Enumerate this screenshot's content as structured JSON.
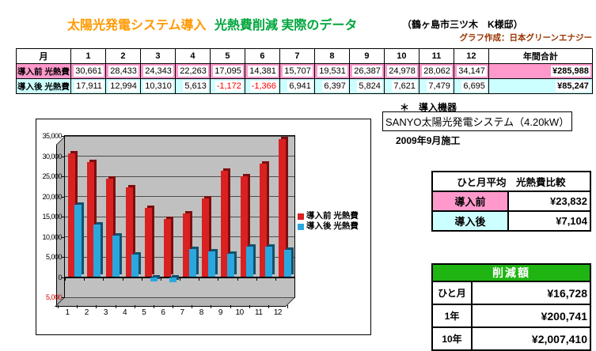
{
  "header": {
    "title_orange": "太陽光発電システム導入",
    "title_green": "光熱費削減 実際のデータ",
    "location": "（鶴ヶ島市三ツ木　K様邸）",
    "credit": "グラフ作成：日本グリーンエナジー"
  },
  "monthly_table": {
    "month_header": "月",
    "months": [
      "1",
      "2",
      "3",
      "4",
      "5",
      "6",
      "7",
      "8",
      "9",
      "10",
      "11",
      "12"
    ],
    "annual_total_header": "年間合計",
    "rows": [
      {
        "label": "導入前 光熱費",
        "row_color": "#FF99CC",
        "values": [
          "30,661",
          "28,433",
          "24,343",
          "22,263",
          "17,095",
          "14,381",
          "15,707",
          "19,531",
          "26,387",
          "24,978",
          "28,062",
          "34,147"
        ],
        "total": "¥285,988"
      },
      {
        "label": "導入後 光熱費",
        "row_color": "#CCFFFF",
        "values": [
          "17,911",
          "12,994",
          "10,310",
          "5,613",
          "-1,172",
          "-1,366",
          "6,941",
          "6,397",
          "5,824",
          "7,621",
          "7,479",
          "6,695"
        ],
        "total": "¥85,247"
      }
    ]
  },
  "chart_data": {
    "type": "bar",
    "title": "",
    "categories": [
      "1",
      "2",
      "3",
      "4",
      "5",
      "6",
      "7",
      "8",
      "9",
      "10",
      "11",
      "12"
    ],
    "series": [
      {
        "name": "導入前 光熱費",
        "color": "#D92121",
        "values": [
          30661,
          28433,
          24343,
          22263,
          17095,
          14381,
          15707,
          19531,
          26387,
          24978,
          28062,
          34147
        ]
      },
      {
        "name": "導入後 光熱費",
        "color": "#2BA7DE",
        "values": [
          17911,
          12994,
          10310,
          5613,
          -1172,
          -1366,
          6941,
          6397,
          5824,
          7621,
          7479,
          6695
        ]
      }
    ],
    "xlabel": "",
    "ylabel": "",
    "ylim": [
      -5000,
      35000
    ],
    "ytick_step": 5000,
    "grid": true,
    "legend_position": "right",
    "plot_background": "#C0C0C0",
    "style": "3d-column"
  },
  "equipment": {
    "note_label": "＊　導入機器",
    "system": "SANYO太陽光発電システム（4.20kW）",
    "install_date": "2009年9月施工"
  },
  "avg_table": {
    "title": "ひと月平均　光熱費比較",
    "rows": [
      {
        "label": "導入前",
        "value": "¥23,832",
        "row_color": "#FF99CC"
      },
      {
        "label": "導入後",
        "value": "¥7,104",
        "row_color": "#CCFFFF"
      }
    ]
  },
  "savings_table": {
    "title": "削減額",
    "title_color": "#1FB412",
    "rows": [
      {
        "label": "ひと月",
        "value": "¥16,728"
      },
      {
        "label": "1年",
        "value": "¥200,741"
      },
      {
        "label": "10年",
        "value": "¥2,007,410"
      }
    ]
  },
  "colors": {
    "title_orange": "#FF9900",
    "title_green": "#00A63C",
    "credit_brown": "#993300",
    "pink": "#FF99CC",
    "cyan": "#CCFFFF",
    "bar_red": "#D92121",
    "bar_blue": "#2BA7DE",
    "negative_red": "#FF0000",
    "savings_header_green": "#1FB412",
    "plot_gray": "#C0C0C0"
  }
}
